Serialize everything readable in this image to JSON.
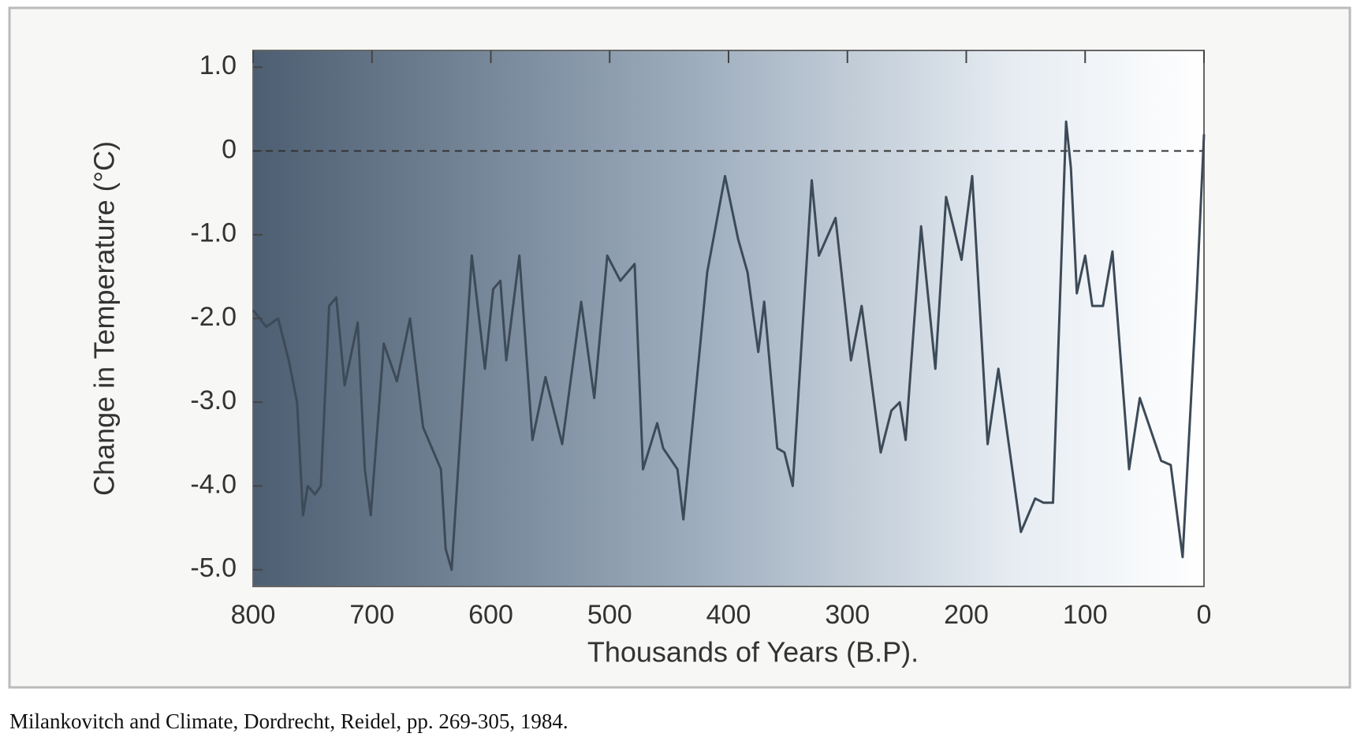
{
  "chart_data": {
    "type": "line",
    "x_label": "Thousands of Years (B.P).",
    "y_label": "Change in Temperature (°C)",
    "x": [
      800,
      789,
      779,
      770,
      763,
      758,
      754,
      748,
      743,
      736,
      730,
      723,
      712,
      706,
      701,
      690,
      679,
      668,
      657,
      642,
      638,
      633,
      616,
      609,
      605,
      598,
      592,
      587,
      576,
      565,
      554,
      540,
      524,
      513,
      502,
      491,
      479,
      472,
      460,
      455,
      443,
      438,
      418,
      403,
      392,
      384,
      375,
      370,
      359,
      353,
      346,
      330,
      324,
      310,
      297,
      288,
      272,
      263,
      256,
      251,
      238,
      226,
      217,
      204,
      195,
      182,
      173,
      154,
      142,
      135,
      127,
      116,
      112,
      107,
      100,
      94,
      85,
      77,
      63,
      54,
      36,
      28,
      18,
      6,
      0
    ],
    "series": [
      {
        "color": "#3d4a58",
        "values": [
          -1.9,
          -2.1,
          -2.0,
          -2.5,
          -3.0,
          -4.35,
          -4.0,
          -4.1,
          -4.0,
          -1.85,
          -1.75,
          -2.8,
          -2.05,
          -3.8,
          -4.35,
          -2.3,
          -2.75,
          -2.0,
          -3.3,
          -3.8,
          -4.75,
          -5.0,
          -1.25,
          -2.1,
          -2.6,
          -1.65,
          -1.55,
          -2.5,
          -1.25,
          -3.45,
          -2.7,
          -3.5,
          -1.8,
          -2.95,
          -1.25,
          -1.55,
          -1.35,
          -3.8,
          -3.25,
          -3.55,
          -3.8,
          -4.4,
          -1.45,
          -0.3,
          -1.05,
          -1.45,
          -2.4,
          -1.8,
          -3.55,
          -3.6,
          -4.0,
          -0.35,
          -1.25,
          -0.8,
          -2.5,
          -1.85,
          -3.6,
          -3.1,
          -3.0,
          -3.45,
          -0.9,
          -2.6,
          -0.55,
          -1.3,
          -0.3,
          -3.5,
          -2.6,
          -4.55,
          -4.15,
          -4.2,
          -4.2,
          0.35,
          -0.2,
          -1.7,
          -1.25,
          -1.85,
          -1.85,
          -1.2,
          -3.8,
          -2.95,
          -3.7,
          -3.75,
          -4.85,
          -1.65,
          0.2
        ]
      }
    ],
    "xlim": [
      800,
      0
    ],
    "ylim": [
      -5.2,
      1.2
    ],
    "xticks": [
      800,
      700,
      600,
      500,
      400,
      300,
      200,
      100,
      0
    ],
    "yticks": [
      {
        "value": 1,
        "label": "1.0"
      },
      0,
      {
        "value": -1,
        "label": "-1.0"
      },
      {
        "value": -2,
        "label": "-2.0"
      },
      {
        "value": -3,
        "label": "-3.0"
      },
      {
        "value": -4,
        "label": "-4.0"
      },
      {
        "value": -5,
        "label": "-5.0"
      }
    ],
    "reference_line": 0
  },
  "caption": "Milankovitch and Climate, Dordrecht, Reidel, pp. 269-305, 1984."
}
